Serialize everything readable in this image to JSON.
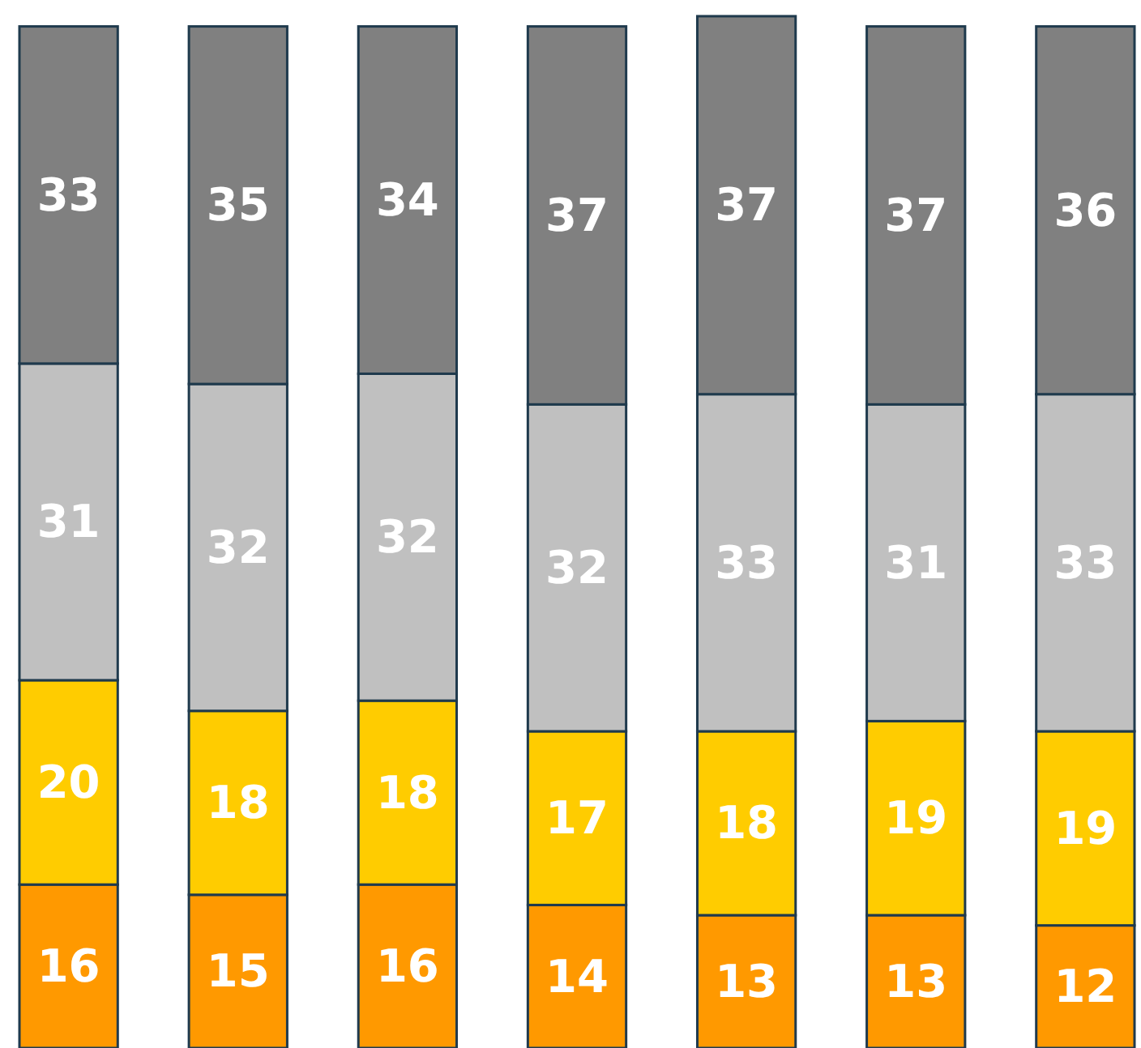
{
  "chart_data": {
    "type": "bar",
    "stacked": true,
    "data_labels": true,
    "legend": false,
    "categories": [
      null,
      null,
      null,
      null,
      null,
      null,
      null
    ],
    "series": [
      {
        "color": "#ff9900",
        "values": [
          16,
          15,
          16,
          14,
          13,
          13,
          12
        ]
      },
      {
        "color": "#ffcc00",
        "values": [
          20,
          18,
          18,
          17,
          18,
          19,
          19
        ]
      },
      {
        "color": "#c0c0c0",
        "values": [
          31,
          32,
          32,
          32,
          33,
          31,
          33
        ]
      },
      {
        "color": "#808080",
        "values": [
          33,
          35,
          34,
          37,
          37,
          37,
          36
        ]
      }
    ]
  }
}
